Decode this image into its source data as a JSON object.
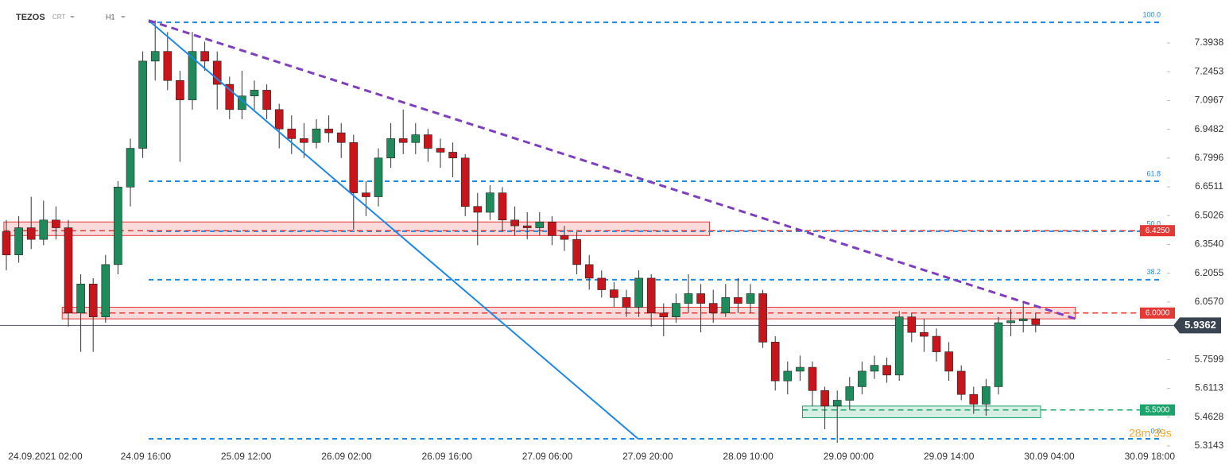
{
  "header": {
    "symbol": "TEZOS",
    "source": "CRT",
    "interval": "H1"
  },
  "chart_data": {
    "type": "candlestick",
    "categories": [
      "24.09.2021  02:00",
      "24.09  16:00",
      "25.09  12:00",
      "26.09  02:00",
      "26.09  16:00",
      "27.09  06:00",
      "27.09  20:00",
      "28.09  10:00",
      "29.09  00:00",
      "29.09  14:00",
      "30.09  04:00",
      "30.09  18:00"
    ],
    "ylim": [
      5.2855,
      7.6153
    ],
    "yticks": [
      7.3938,
      7.2453,
      7.0967,
      6.9482,
      6.7996,
      6.6511,
      6.5026,
      {
        "value": 6.354,
        "label": "6.3540"
      },
      6.2055,
      {
        "value": 6.057,
        "label": "6.0570"
      },
      5.7599,
      5.6113,
      5.4628,
      5.3143
    ],
    "up_color": "#1f8a5b",
    "down_color": "#c8151b",
    "open": [
      6.42,
      6.3,
      6.44,
      6.38,
      6.48,
      6.44,
      6.0,
      6.15,
      5.98,
      6.25,
      6.65,
      6.85,
      7.3,
      7.35,
      7.2,
      7.1,
      7.35,
      7.3,
      7.18,
      7.05,
      7.12,
      7.15,
      7.05,
      6.95,
      6.9,
      6.88,
      6.95,
      6.93,
      6.88,
      6.62,
      6.6,
      6.8,
      6.9,
      6.88,
      6.92,
      6.85,
      6.83,
      6.8,
      6.55,
      6.52,
      6.62,
      6.48,
      6.45,
      6.44,
      6.47,
      6.4,
      6.38,
      6.25,
      6.18,
      6.12,
      6.08,
      6.03,
      6.18,
      6.0,
      5.98,
      6.05,
      6.1,
      6.05,
      6.0,
      6.08,
      6.05,
      6.1,
      5.85,
      5.65,
      5.7,
      5.72,
      5.6,
      5.52,
      5.55,
      5.62,
      5.7,
      5.73,
      5.68,
      5.98,
      5.9,
      5.88,
      5.8,
      5.7,
      5.58,
      5.53,
      5.62,
      5.95,
      5.96,
      5.97
    ],
    "high": [
      6.48,
      6.5,
      6.6,
      6.58,
      6.55,
      6.48,
      6.2,
      6.18,
      6.3,
      6.68,
      6.9,
      7.35,
      7.51,
      7.45,
      7.25,
      7.45,
      7.4,
      7.35,
      7.22,
      7.25,
      7.2,
      7.18,
      7.08,
      7.02,
      6.98,
      7.0,
      7.02,
      6.98,
      6.92,
      6.68,
      6.85,
      6.98,
      7.05,
      6.98,
      6.95,
      6.9,
      6.88,
      6.82,
      6.62,
      6.66,
      6.65,
      6.55,
      6.52,
      6.52,
      6.5,
      6.45,
      6.42,
      6.3,
      6.22,
      6.16,
      6.12,
      6.22,
      6.2,
      6.05,
      6.1,
      6.2,
      6.15,
      6.12,
      6.15,
      6.18,
      6.15,
      6.12,
      5.88,
      5.75,
      5.78,
      5.75,
      5.62,
      5.6,
      5.67,
      5.75,
      5.78,
      5.77,
      6.01,
      6.0,
      5.97,
      5.92,
      5.85,
      5.73,
      5.62,
      5.66,
      5.98,
      6.02,
      6.06,
      6.0
    ],
    "low": [
      6.22,
      6.26,
      6.33,
      6.35,
      6.38,
      5.93,
      5.8,
      5.8,
      5.95,
      6.2,
      6.55,
      6.8,
      7.2,
      7.15,
      6.78,
      7.05,
      7.25,
      7.05,
      7.0,
      7.0,
      7.05,
      7.0,
      6.85,
      6.82,
      6.8,
      6.85,
      6.88,
      6.8,
      6.43,
      6.5,
      6.55,
      6.75,
      6.82,
      6.82,
      6.78,
      6.75,
      6.7,
      6.5,
      6.35,
      6.48,
      6.42,
      6.4,
      6.38,
      6.4,
      6.35,
      6.32,
      6.2,
      6.12,
      6.08,
      6.03,
      5.98,
      5.98,
      5.93,
      5.88,
      5.95,
      6.0,
      5.9,
      5.95,
      5.98,
      6.0,
      6.0,
      5.82,
      5.6,
      5.58,
      5.65,
      5.52,
      5.4,
      5.33,
      5.5,
      5.58,
      5.66,
      5.64,
      5.65,
      5.85,
      5.8,
      5.75,
      5.65,
      5.55,
      5.48,
      5.47,
      5.58,
      5.88,
      5.9,
      5.9
    ],
    "close": [
      6.3,
      6.44,
      6.38,
      6.48,
      6.44,
      6.0,
      6.15,
      5.98,
      6.25,
      6.65,
      6.85,
      7.3,
      7.35,
      7.2,
      7.1,
      7.35,
      7.3,
      7.18,
      7.05,
      7.12,
      7.15,
      7.05,
      6.95,
      6.9,
      6.88,
      6.95,
      6.93,
      6.88,
      6.62,
      6.6,
      6.8,
      6.9,
      6.88,
      6.92,
      6.85,
      6.83,
      6.8,
      6.55,
      6.52,
      6.62,
      6.48,
      6.45,
      6.44,
      6.47,
      6.4,
      6.38,
      6.25,
      6.18,
      6.12,
      6.08,
      6.03,
      6.18,
      6.0,
      5.98,
      6.05,
      6.1,
      6.05,
      6.0,
      6.08,
      6.05,
      6.1,
      5.85,
      5.65,
      5.7,
      5.72,
      5.6,
      5.52,
      5.55,
      5.62,
      5.7,
      5.73,
      5.68,
      5.98,
      5.9,
      5.88,
      5.8,
      5.7,
      5.58,
      5.53,
      5.62,
      5.95,
      5.96,
      5.97,
      5.94
    ],
    "fibonacci": [
      {
        "label": "100.0",
        "price": 7.5
      },
      {
        "label": "61.8",
        "price": 6.68
      },
      {
        "label": "50.0",
        "price": 6.422
      },
      {
        "label": "38.2",
        "price": 6.172
      },
      {
        "label": "0.0",
        "price": 5.351
      }
    ],
    "levels": [
      {
        "label": "6.4250",
        "price": 6.425,
        "color": "#e53935"
      },
      {
        "label": "6.0000",
        "price": 6.0,
        "color": "#e53935"
      },
      {
        "label": "5.5000",
        "price": 5.5,
        "color": "#1aa36b"
      }
    ],
    "zones": [
      {
        "low": 6.4,
        "high": 6.47,
        "from": -0.2,
        "to": 56.7,
        "color": "#e53935"
      },
      {
        "low": 5.97,
        "high": 6.03,
        "from": 4.5,
        "to": 86.2,
        "color": "#e53935"
      },
      {
        "low": 5.46,
        "high": 5.52,
        "from": 64.2,
        "to": 83.4,
        "color": "#1aa36b"
      }
    ],
    "trendlines": [
      {
        "from": 11.47,
        "from_price": 7.51,
        "to": 50.96,
        "to_price": 5.35,
        "color": "#1e88e5",
        "dash": false
      },
      {
        "from": 11.47,
        "from_price": 7.51,
        "to": 86.2,
        "to_price": 5.9705,
        "color": "#7e3fbf",
        "dash": true
      }
    ],
    "last_price": {
      "label": "5.9362",
      "price": 5.9362
    },
    "countdown": "28m 39s"
  }
}
